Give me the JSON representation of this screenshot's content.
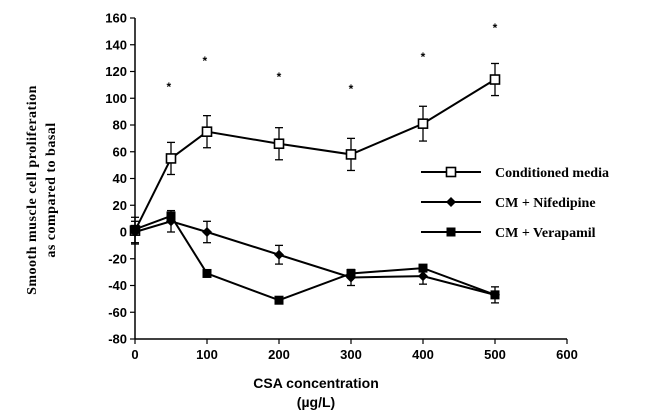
{
  "chart_data": {
    "type": "line",
    "xlabel_line1": "CSA   concentration",
    "xlabel_line2": "(µg/L)",
    "ylabel_line1": "Smooth   muscle   cell   proliferation",
    "ylabel_line2": "as  compared  to  basal",
    "xlim": [
      0,
      600
    ],
    "ylim": [
      -80,
      160
    ],
    "xticks": [
      0,
      100,
      200,
      300,
      400,
      500,
      600
    ],
    "yticks": [
      -80,
      -60,
      -40,
      -20,
      0,
      20,
      40,
      60,
      80,
      100,
      120,
      140,
      160
    ],
    "grid": false,
    "legend_position": "right",
    "significance_marks": [
      {
        "x": 47,
        "label": "*"
      },
      {
        "x": 97,
        "label": "*"
      },
      {
        "x": 200,
        "label": "*"
      },
      {
        "x": 300,
        "label": "*"
      },
      {
        "x": 400,
        "label": "*"
      },
      {
        "x": 500,
        "label": "*"
      }
    ],
    "series": [
      {
        "name": "Conditioned media",
        "marker": "open-square",
        "x": [
          0,
          50,
          100,
          200,
          300,
          400,
          500
        ],
        "y": [
          1,
          55,
          75,
          66,
          58,
          81,
          114
        ],
        "err": [
          10,
          12,
          12,
          12,
          12,
          13,
          12
        ]
      },
      {
        "name": "CM + Nifedipine",
        "marker": "filled-diamond",
        "x": [
          0,
          50,
          100,
          200,
          300,
          400,
          500
        ],
        "y": [
          0,
          8,
          0,
          -17,
          -34,
          -33,
          -47
        ],
        "err": [
          8,
          8,
          8,
          7,
          6,
          6,
          6
        ]
      },
      {
        "name": "CM + Verapamil",
        "marker": "filled-square",
        "x": [
          0,
          50,
          100,
          200,
          300,
          400,
          500
        ],
        "y": [
          2,
          12,
          -31,
          -51,
          -31,
          -27,
          -47
        ],
        "err": [
          0,
          0,
          0,
          0,
          0,
          0,
          0
        ]
      }
    ]
  }
}
